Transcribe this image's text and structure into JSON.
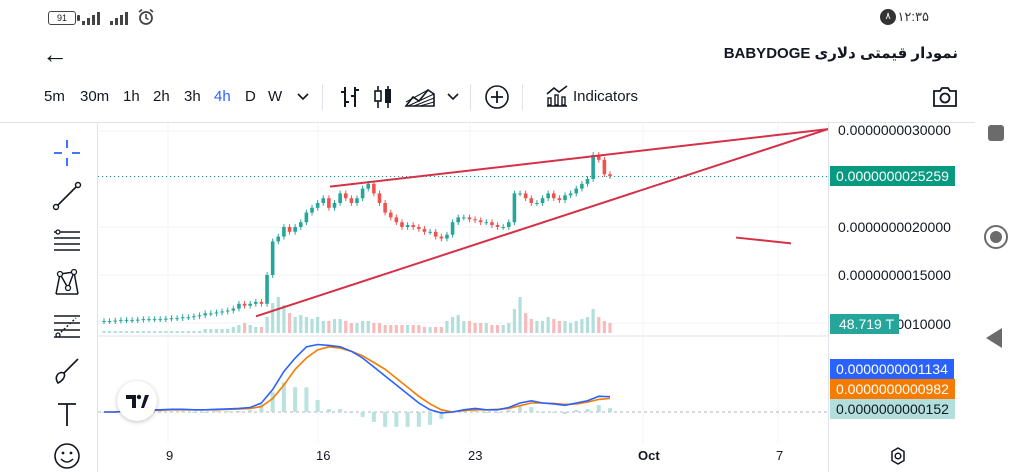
{
  "status": {
    "battery": "91",
    "time": "۱۲:۳۵",
    "notification_count": "۸"
  },
  "header": {
    "title": "نمودار قیمتی دلاری BABYDOGE"
  },
  "timeframes": [
    {
      "label": "5m",
      "active": false
    },
    {
      "label": "30m",
      "active": false
    },
    {
      "label": "1h",
      "active": false
    },
    {
      "label": "2h",
      "active": false
    },
    {
      "label": "3h",
      "active": false
    },
    {
      "label": "4h",
      "active": true
    },
    {
      "label": "D",
      "active": false
    },
    {
      "label": "W",
      "active": false
    }
  ],
  "toolbar": {
    "indicators_label": "Indicators"
  },
  "chart_data": {
    "type": "candlestick",
    "price_axis_ticks": [
      "0.0000000030000",
      "0.0000000020000",
      "0.0000000015000",
      "0.0000000010000"
    ],
    "last_price_label": "0.0000000025259",
    "volume_label": "48.719 T",
    "x_tick_labels": [
      "9",
      "16",
      "23",
      "Oct",
      "7"
    ],
    "macd_labels": {
      "macd": "0.0000000001134",
      "signal": "0.0000000000982",
      "histogram": "0.0000000000152"
    },
    "colors": {
      "up": "#26a69a",
      "down": "#ef5350",
      "trendline": "#d63047",
      "macd_line": "#2962ff",
      "signal_line": "#f57c00",
      "last_price_badge": "#089981",
      "volume_badge": "#26a69a",
      "hist_badge": "#b2dfdb"
    },
    "price_series": [
      1.02,
      1.02,
      1.025,
      1.03,
      1.03,
      1.03,
      1.035,
      1.04,
      1.04,
      1.04,
      1.04,
      1.045,
      1.05,
      1.05,
      1.06,
      1.06,
      1.07,
      1.08,
      1.1,
      1.1,
      1.11,
      1.12,
      1.13,
      1.15,
      1.2,
      1.18,
      1.2,
      1.22,
      1.2,
      1.5,
      1.85,
      1.9,
      2.0,
      1.95,
      2.0,
      2.05,
      2.15,
      2.2,
      2.25,
      2.3,
      2.2,
      2.25,
      2.35,
      2.3,
      2.25,
      2.3,
      2.4,
      2.45,
      2.35,
      2.25,
      2.15,
      2.1,
      2.05,
      2.0,
      2.02,
      2.0,
      1.98,
      1.95,
      1.95,
      1.9,
      1.88,
      1.92,
      2.05,
      2.1,
      2.1,
      2.08,
      2.07,
      2.05,
      2.05,
      2.02,
      2.0,
      2.0,
      2.05,
      2.35,
      2.35,
      2.3,
      2.25,
      2.25,
      2.3,
      2.35,
      2.3,
      2.28,
      2.33,
      2.35,
      2.4,
      2.45,
      2.5,
      2.75,
      2.7,
      2.55,
      2.53
    ],
    "volume_series": [
      1,
      1,
      1,
      1,
      1,
      1,
      1,
      1,
      1,
      1,
      1,
      1,
      1,
      1,
      1,
      1,
      1,
      1,
      2,
      2,
      2,
      2,
      2,
      3,
      4,
      5,
      4,
      3,
      3,
      8,
      15,
      18,
      14,
      10,
      8,
      9,
      8,
      7,
      8,
      6,
      6,
      7,
      7,
      6,
      5,
      5,
      6,
      6,
      5,
      5,
      4,
      4,
      4,
      4,
      4,
      4,
      4,
      3,
      3,
      3,
      3,
      6,
      8,
      9,
      6,
      6,
      5,
      5,
      5,
      4,
      4,
      4,
      5,
      12,
      18,
      10,
      7,
      6,
      6,
      8,
      7,
      6,
      6,
      5,
      6,
      7,
      8,
      12,
      8,
      6,
      5
    ],
    "macd_series": [
      0,
      0,
      0.02,
      0.03,
      0.05,
      0.05,
      0.06,
      0.06,
      0.05,
      0.05,
      0.06,
      0.07,
      0.08,
      0.1,
      0.2,
      0.5,
      0.9,
      1.2,
      1.45,
      1.5,
      1.48,
      1.45,
      1.35,
      1.2,
      1.0,
      0.8,
      0.6,
      0.4,
      0.2,
      0.05,
      -0.02,
      0.0,
      0.05,
      0.08,
      0.05,
      0.05,
      0.1,
      0.2,
      0.25,
      0.2,
      0.18,
      0.15,
      0.2,
      0.25,
      0.35,
      0.34
    ],
    "signal_series": [
      0,
      0,
      0.01,
      0.02,
      0.03,
      0.04,
      0.05,
      0.05,
      0.05,
      0.05,
      0.05,
      0.06,
      0.07,
      0.08,
      0.12,
      0.3,
      0.6,
      0.95,
      1.2,
      1.38,
      1.45,
      1.42,
      1.35,
      1.25,
      1.1,
      0.95,
      0.75,
      0.55,
      0.35,
      0.18,
      0.05,
      0.0,
      0.03,
      0.05,
      0.05,
      0.06,
      0.08,
      0.14,
      0.2,
      0.2,
      0.19,
      0.17,
      0.18,
      0.22,
      0.28,
      0.3
    ]
  }
}
